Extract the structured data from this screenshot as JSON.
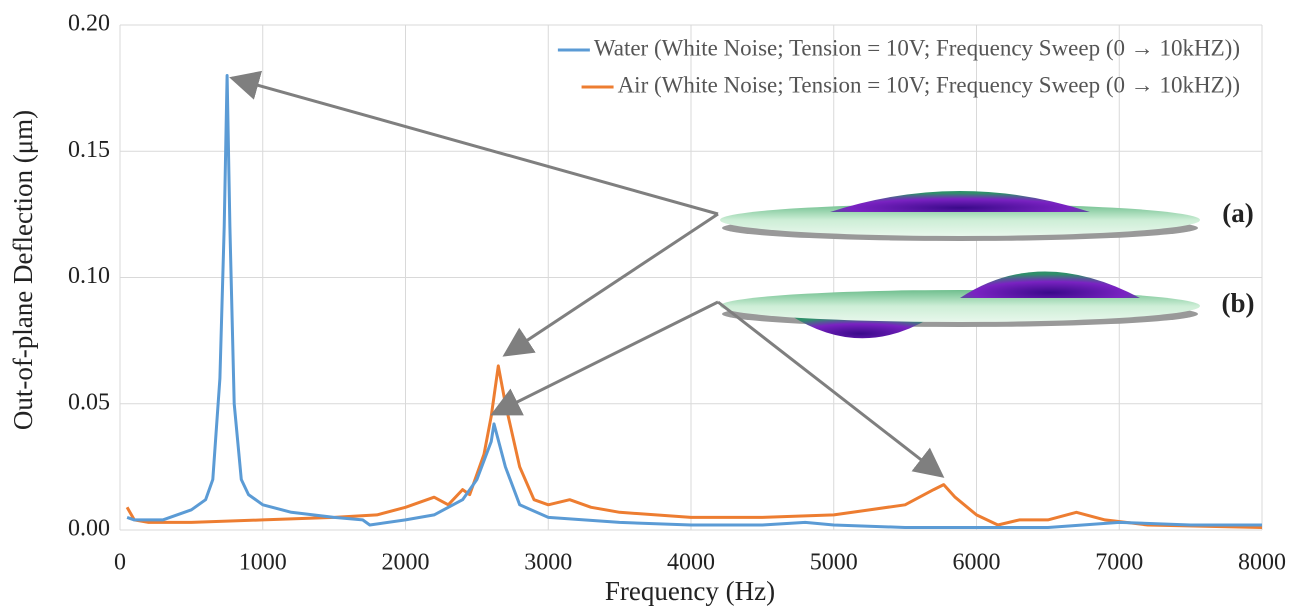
{
  "chart_data": {
    "type": "line",
    "xlabel": "Frequency (Hz)",
    "ylabel": "Out-of-plane Deflection (μm)",
    "xlim": [
      0,
      8000
    ],
    "xticks": [
      0,
      1000,
      2000,
      3000,
      4000,
      5000,
      6000,
      7000,
      8000
    ],
    "ylim": [
      0,
      0.2
    ],
    "yticks": [
      {
        "value": 0,
        "label": "0.00"
      },
      {
        "value": 0.05,
        "label": "0.05"
      },
      {
        "value": 0.1,
        "label": "0.10"
      },
      {
        "value": 0.15,
        "label": "0.15"
      },
      {
        "value": 0.2,
        "label": "0.20"
      }
    ],
    "grid": true,
    "legend": "top-right",
    "annotations": [
      "(a)",
      "(b)"
    ],
    "series": [
      {
        "name": "Water (White Noise; Tension = 10V; Frequency Sweep (0 → 10kHZ))",
        "color": "#5b9bd5",
        "x": [
          50,
          100,
          300,
          500,
          600,
          650,
          700,
          730,
          750,
          770,
          800,
          850,
          900,
          1000,
          1200,
          1500,
          1700,
          1750,
          2000,
          2200,
          2400,
          2500,
          2600,
          2620,
          2700,
          2800,
          3000,
          3500,
          4000,
          4500,
          4800,
          5000,
          5500,
          6000,
          6500,
          7000,
          7500,
          8000
        ],
        "values": [
          0.005,
          0.004,
          0.004,
          0.008,
          0.012,
          0.02,
          0.06,
          0.12,
          0.18,
          0.12,
          0.05,
          0.02,
          0.014,
          0.01,
          0.007,
          0.005,
          0.004,
          0.002,
          0.004,
          0.006,
          0.012,
          0.02,
          0.035,
          0.042,
          0.025,
          0.01,
          0.005,
          0.003,
          0.002,
          0.002,
          0.003,
          0.002,
          0.001,
          0.001,
          0.001,
          0.003,
          0.002,
          0.002
        ]
      },
      {
        "name": "Air (White Noise; Tension = 10V; Frequency Sweep (0 → 10kHZ))",
        "color": "#ed7d31",
        "x": [
          50,
          100,
          200,
          500,
          1000,
          1500,
          1800,
          2000,
          2200,
          2300,
          2400,
          2450,
          2550,
          2600,
          2650,
          2700,
          2800,
          2900,
          3000,
          3150,
          3300,
          3500,
          4000,
          4500,
          5000,
          5500,
          5700,
          5770,
          5850,
          6000,
          6150,
          6300,
          6500,
          6700,
          6900,
          7200,
          8000
        ],
        "values": [
          0.009,
          0.004,
          0.003,
          0.003,
          0.004,
          0.005,
          0.006,
          0.009,
          0.013,
          0.01,
          0.016,
          0.014,
          0.03,
          0.045,
          0.065,
          0.05,
          0.025,
          0.012,
          0.01,
          0.012,
          0.009,
          0.007,
          0.005,
          0.005,
          0.006,
          0.01,
          0.016,
          0.018,
          0.013,
          0.006,
          0.002,
          0.004,
          0.004,
          0.007,
          0.004,
          0.002,
          0.001
        ]
      }
    ]
  }
}
